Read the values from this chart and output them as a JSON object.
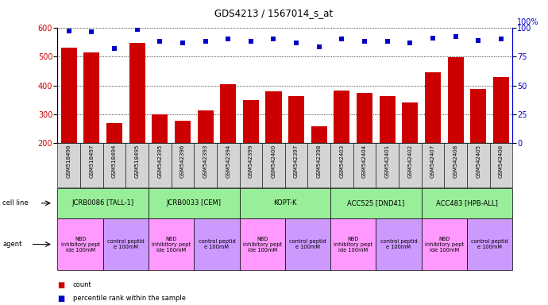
{
  "title": "GDS4213 / 1567014_s_at",
  "samples": [
    "GSM518496",
    "GSM518497",
    "GSM518494",
    "GSM518495",
    "GSM542395",
    "GSM542396",
    "GSM542393",
    "GSM542394",
    "GSM542399",
    "GSM542400",
    "GSM542397",
    "GSM542398",
    "GSM542403",
    "GSM542404",
    "GSM542401",
    "GSM542402",
    "GSM542407",
    "GSM542408",
    "GSM542405",
    "GSM542406"
  ],
  "counts": [
    530,
    515,
    270,
    548,
    300,
    278,
    313,
    403,
    348,
    380,
    362,
    258,
    383,
    374,
    363,
    342,
    445,
    497,
    388,
    428
  ],
  "percentile_ranks": [
    97,
    96,
    82,
    98,
    88,
    87,
    88,
    90,
    88,
    90,
    87,
    83,
    90,
    88,
    88,
    87,
    91,
    92,
    89,
    90
  ],
  "cell_lines": [
    {
      "label": "JCRB0086 [TALL-1]",
      "start": 0,
      "end": 4,
      "color": "#99ee99"
    },
    {
      "label": "JCRB0033 [CEM]",
      "start": 4,
      "end": 8,
      "color": "#99ee99"
    },
    {
      "label": "KOPT-K",
      "start": 8,
      "end": 12,
      "color": "#99ee99"
    },
    {
      "label": "ACC525 [DND41]",
      "start": 12,
      "end": 16,
      "color": "#99ee99"
    },
    {
      "label": "ACC483 [HPB-ALL]",
      "start": 16,
      "end": 20,
      "color": "#99ee99"
    }
  ],
  "agents": [
    {
      "label": "NBD\ninhibitory pept\nide 100mM",
      "start": 0,
      "end": 2,
      "color": "#ff99ff"
    },
    {
      "label": "control peptid\ne 100mM",
      "start": 2,
      "end": 4,
      "color": "#cc99ff"
    },
    {
      "label": "NBD\ninhibitory pept\nide 100mM",
      "start": 4,
      "end": 6,
      "color": "#ff99ff"
    },
    {
      "label": "control peptid\ne 100mM",
      "start": 6,
      "end": 8,
      "color": "#cc99ff"
    },
    {
      "label": "NBD\ninhibitory pept\nide 100mM",
      "start": 8,
      "end": 10,
      "color": "#ff99ff"
    },
    {
      "label": "control peptid\ne 100mM",
      "start": 10,
      "end": 12,
      "color": "#cc99ff"
    },
    {
      "label": "NBD\ninhibitory pept\nide 100mM",
      "start": 12,
      "end": 14,
      "color": "#ff99ff"
    },
    {
      "label": "control peptid\ne 100mM",
      "start": 14,
      "end": 16,
      "color": "#cc99ff"
    },
    {
      "label": "NBD\ninhibitory pept\nide 100mM",
      "start": 16,
      "end": 18,
      "color": "#ff99ff"
    },
    {
      "label": "control peptid\ne 100mM",
      "start": 18,
      "end": 20,
      "color": "#cc99ff"
    }
  ],
  "bar_color": "#cc0000",
  "dot_color": "#0000cc",
  "ylim_left": [
    200,
    600
  ],
  "ylim_right": [
    0,
    100
  ],
  "yticks_left": [
    200,
    300,
    400,
    500,
    600
  ],
  "yticks_right": [
    0,
    25,
    50,
    75,
    100
  ],
  "background_color": "#ffffff",
  "gray_bg": "#d4d4d4",
  "cell_line_green": "#99ee99",
  "nbd_pink": "#ff99ff",
  "control_purple": "#cc99ff"
}
